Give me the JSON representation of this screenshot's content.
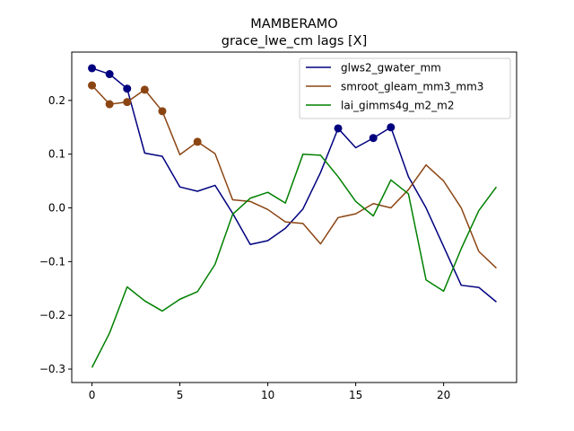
{
  "chart_data": {
    "type": "line",
    "title": "MAMBERAMO",
    "subtitle": "grace_lwe_cm lags [X]",
    "xlabel": "",
    "ylabel": "",
    "xlim": [
      -1.15,
      24.15
    ],
    "ylim": [
      -0.325,
      0.29
    ],
    "xticks": [
      0,
      5,
      10,
      15,
      20
    ],
    "xtick_labels": [
      "0",
      "5",
      "10",
      "15",
      "20"
    ],
    "yticks": [
      -0.3,
      -0.2,
      -0.1,
      0.0,
      0.1,
      0.2
    ],
    "ytick_labels": [
      "−0.3",
      "−0.2",
      "−0.1",
      "0.0",
      "0.1",
      "0.2"
    ],
    "grid": false,
    "legend_position": "top-right",
    "x": [
      0,
      1,
      2,
      3,
      4,
      5,
      6,
      7,
      8,
      9,
      10,
      11,
      12,
      13,
      14,
      15,
      16,
      17,
      18,
      19,
      20,
      21,
      22,
      23
    ],
    "series": [
      {
        "name": "glws2_gwater_mm",
        "color": "#00007f",
        "values": [
          0.26,
          0.249,
          0.222,
          0.102,
          0.096,
          0.039,
          0.031,
          0.042,
          -0.01,
          -0.068,
          -0.061,
          -0.038,
          -0.002,
          0.066,
          0.148,
          0.112,
          0.13,
          0.15,
          0.058,
          0.0,
          -0.072,
          -0.144,
          -0.148,
          -0.175
        ],
        "markers_at": [
          0,
          1,
          2,
          14,
          16,
          17
        ]
      },
      {
        "name": "smroot_gleam_mm3_mm3",
        "color": "#8b4513",
        "values": [
          0.228,
          0.193,
          0.197,
          0.22,
          0.18,
          0.099,
          0.123,
          0.101,
          0.015,
          0.012,
          -0.003,
          -0.026,
          -0.029,
          -0.067,
          -0.018,
          -0.011,
          0.008,
          0.0,
          0.034,
          0.08,
          0.05,
          0.0,
          -0.081,
          -0.112
        ],
        "markers_at": [
          0,
          1,
          2,
          3,
          4,
          6
        ]
      },
      {
        "name": "lai_gimms4g_m2_m2",
        "color": "#008000",
        "values": [
          -0.297,
          -0.233,
          -0.147,
          -0.173,
          -0.192,
          -0.17,
          -0.156,
          -0.105,
          -0.012,
          0.018,
          0.029,
          0.009,
          0.1,
          0.098,
          0.058,
          0.012,
          -0.015,
          0.052,
          0.026,
          -0.134,
          -0.155,
          -0.076,
          -0.005,
          0.039
        ],
        "markers_at": []
      }
    ]
  }
}
